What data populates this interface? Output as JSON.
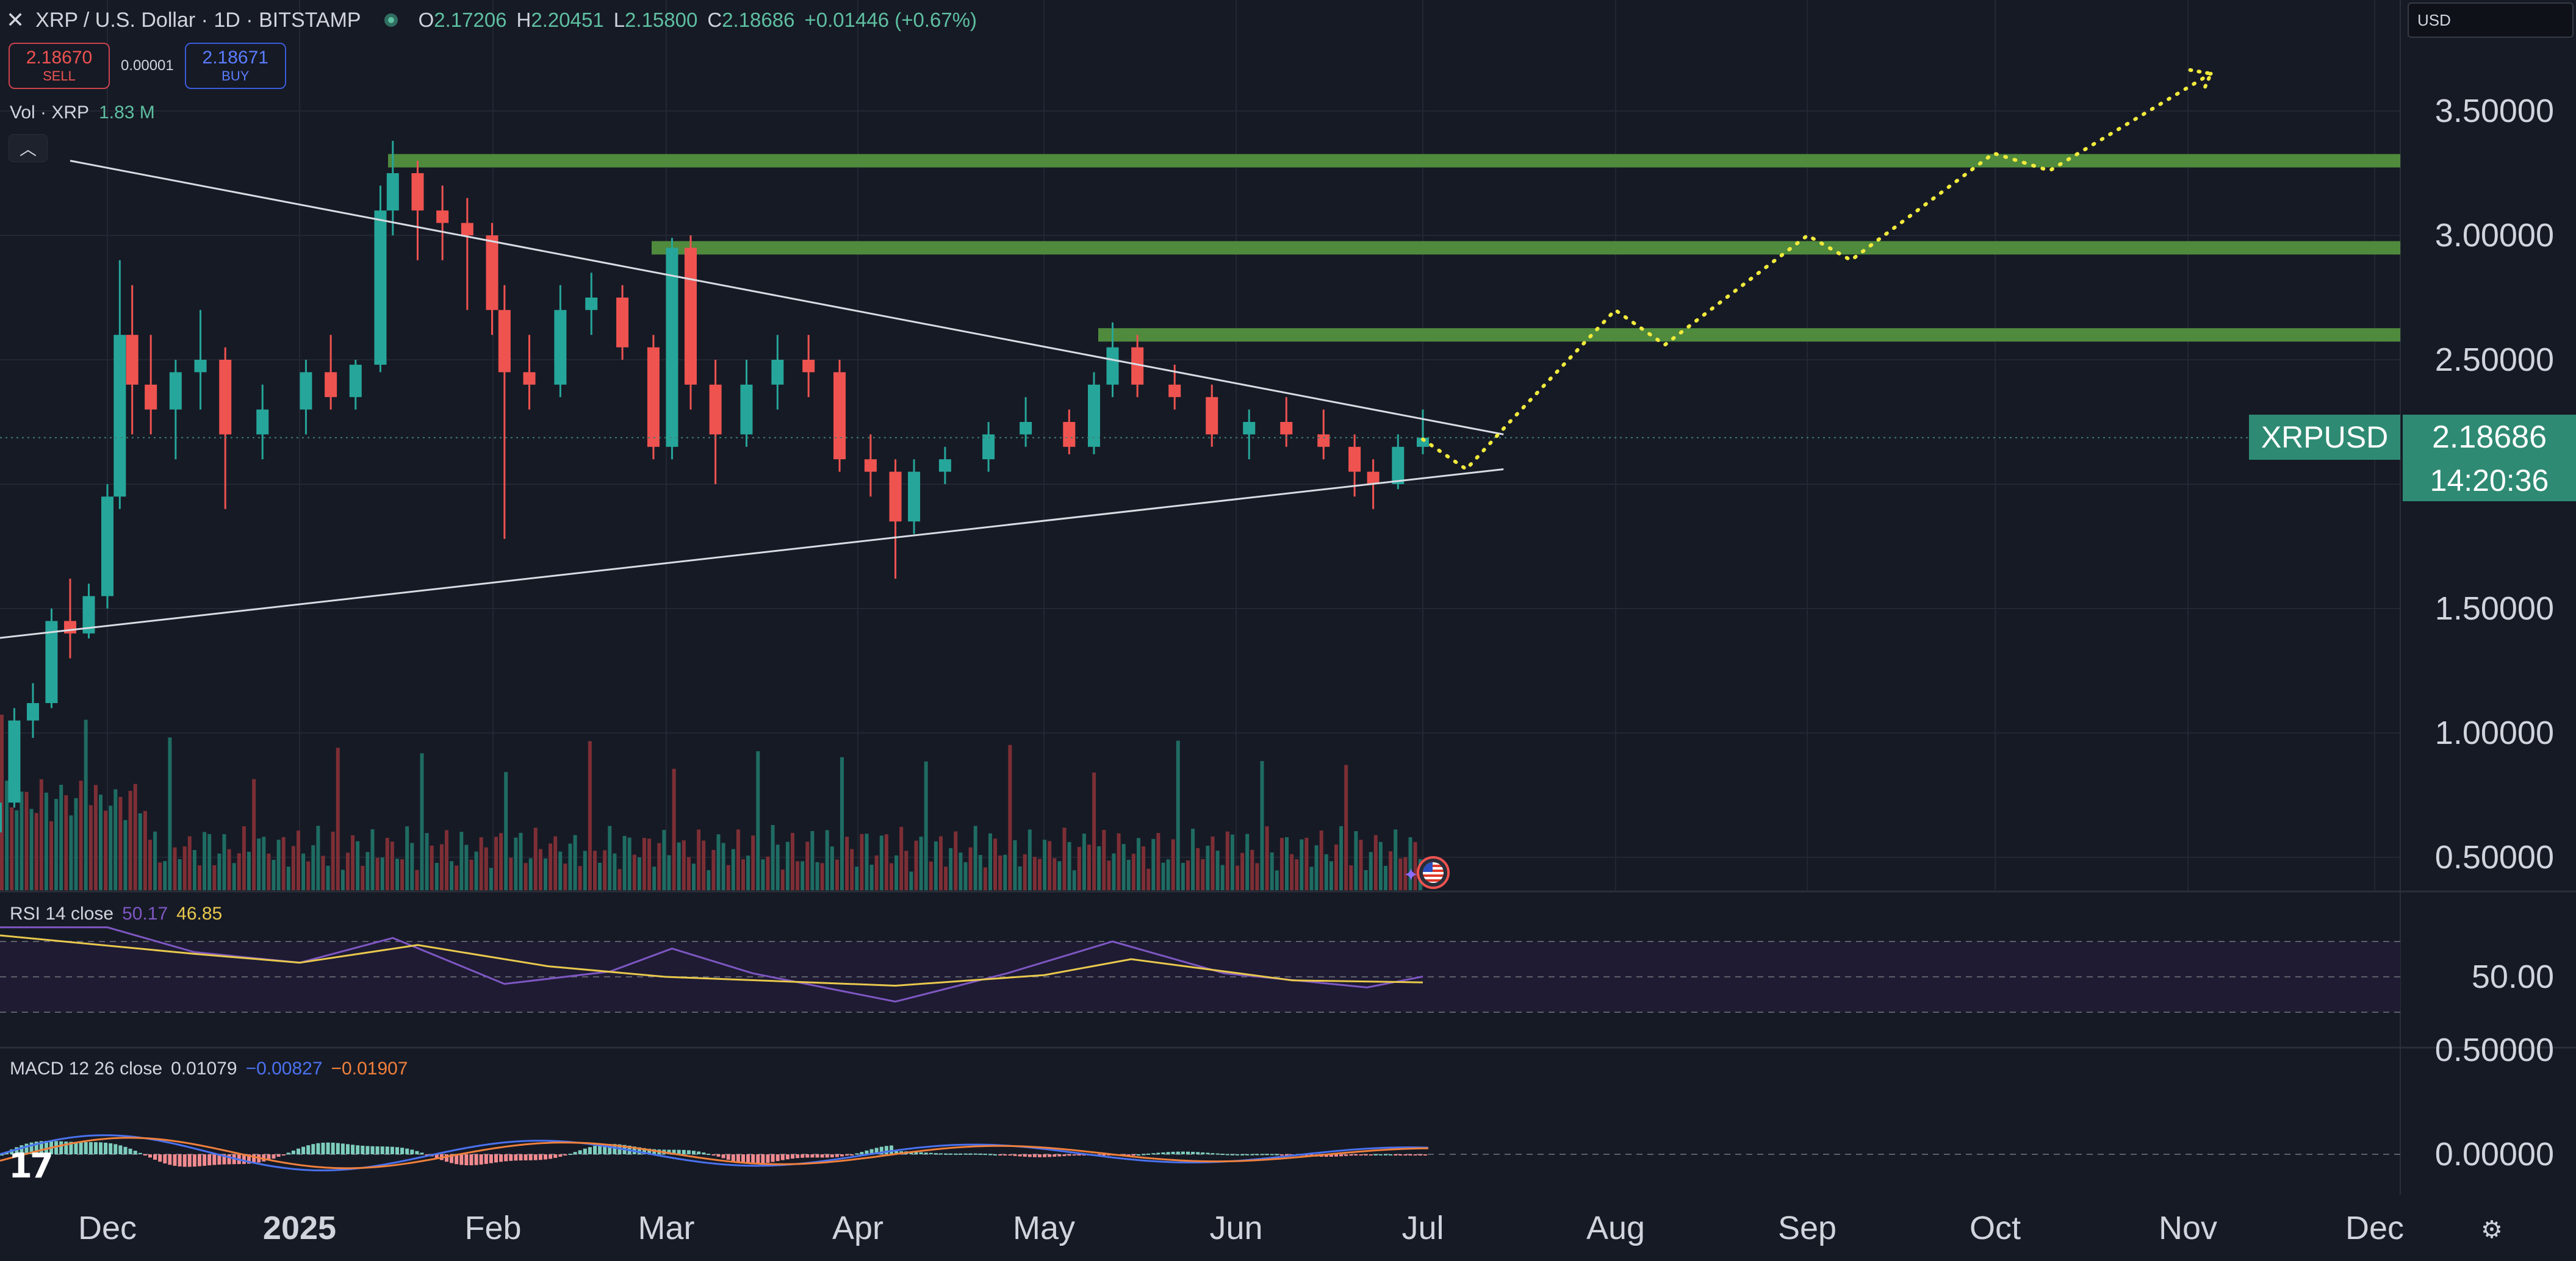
{
  "header": {
    "close_icon": "close-icon",
    "title": "XRP / U.S. Dollar · 1D · BITSTAMP",
    "ohlc": [
      {
        "k": "O",
        "v": "2.17206"
      },
      {
        "k": "H",
        "v": "2.20451"
      },
      {
        "k": "L",
        "v": "2.15800"
      },
      {
        "k": "C",
        "v": "2.18686"
      },
      {
        "k": "",
        "v": "+0.01446 (+0.67%)"
      }
    ]
  },
  "trade": {
    "sell_price": "2.18670",
    "sell_label": "SELL",
    "spread": "0.00001",
    "buy_price": "2.18671",
    "buy_label": "BUY"
  },
  "volume": {
    "label": "Vol · XRP",
    "value": "1.83 M"
  },
  "currency": "USD",
  "rsi": {
    "label": "RSI 14 close",
    "value1": "50.17",
    "value2": "46.85"
  },
  "macd": {
    "label": "MACD 12 26 close",
    "value1": "0.01079",
    "value2": "−0.00827",
    "value3": "−0.01907"
  },
  "last_price": {
    "symbol": "XRPUSD",
    "price": "2.18686",
    "countdown": "14:20:36"
  },
  "colors": {
    "up": "#26a69a",
    "down": "#ef5350",
    "background": "#161a25",
    "zone": "#4f8a3d",
    "projection": "#f0ea3c",
    "trendline": "#d9dce3",
    "rsi": "#7e57c2",
    "rsi_ma": "#e9c94d",
    "macd": "#4a72f0",
    "signal": "#f0803c"
  },
  "icons": {
    "settings": "gear-icon",
    "logo": "tradingview-logo-icon",
    "event": "us-flag-icon"
  },
  "chart_data": {
    "type": "candlestick",
    "x_ticks": [
      "Dec",
      "2025",
      "Feb",
      "Mar",
      "Apr",
      "May",
      "Jun",
      "Jul",
      "Aug",
      "Sep",
      "Oct",
      "Nov",
      "Dec"
    ],
    "y_ticks": [
      "3.50000",
      "3.00000",
      "2.50000",
      "1.50000",
      "1.00000",
      "0.50000"
    ],
    "y_range": [
      0.5,
      3.5
    ],
    "rsi_ticks": [
      "50.00"
    ],
    "macd_ticks": [
      "0.50000",
      "0.00000"
    ],
    "resistance_zones": [
      2.6,
      2.95,
      3.3
    ],
    "trendlines": [
      {
        "name": "upper",
        "from": [
          "2024-11-25",
          3.3
        ],
        "to": [
          "2025-07-14",
          2.2
        ]
      },
      {
        "name": "lower",
        "from": [
          "2024-11-13",
          1.38
        ],
        "to": [
          "2025-07-14",
          2.06
        ]
      }
    ],
    "projection_path": [
      [
        "2025-07-01",
        2.18
      ],
      [
        "2025-07-08",
        2.06
      ],
      [
        "2025-07-15",
        2.25
      ],
      [
        "2025-08-01",
        2.7
      ],
      [
        "2025-08-09",
        2.56
      ],
      [
        "2025-09-01",
        3.0
      ],
      [
        "2025-09-08",
        2.9
      ],
      [
        "2025-10-01",
        3.33
      ],
      [
        "2025-10-10",
        3.26
      ],
      [
        "2025-11-05",
        3.65
      ]
    ],
    "candles": [
      [
        "2024-11-10",
        0.54,
        0.62,
        0.52,
        0.6
      ],
      [
        "2024-11-13",
        0.6,
        0.75,
        0.58,
        0.72
      ],
      [
        "2024-11-16",
        0.72,
        1.1,
        0.7,
        1.05
      ],
      [
        "2024-11-19",
        1.05,
        1.2,
        0.98,
        1.12
      ],
      [
        "2024-11-22",
        1.12,
        1.5,
        1.1,
        1.45
      ],
      [
        "2024-11-25",
        1.45,
        1.62,
        1.3,
        1.4
      ],
      [
        "2024-11-28",
        1.4,
        1.6,
        1.38,
        1.55
      ],
      [
        "2024-12-01",
        1.55,
        2.0,
        1.5,
        1.95
      ],
      [
        "2024-12-03",
        1.95,
        2.9,
        1.9,
        2.6
      ],
      [
        "2024-12-05",
        2.6,
        2.8,
        2.2,
        2.4
      ],
      [
        "2024-12-08",
        2.4,
        2.6,
        2.2,
        2.3
      ],
      [
        "2024-12-12",
        2.3,
        2.5,
        2.1,
        2.45
      ],
      [
        "2024-12-16",
        2.45,
        2.7,
        2.3,
        2.5
      ],
      [
        "2024-12-20",
        2.5,
        2.55,
        1.9,
        2.2
      ],
      [
        "2024-12-26",
        2.2,
        2.4,
        2.1,
        2.3
      ],
      [
        "2025-01-02",
        2.3,
        2.5,
        2.2,
        2.45
      ],
      [
        "2025-01-06",
        2.45,
        2.6,
        2.3,
        2.35
      ],
      [
        "2025-01-10",
        2.35,
        2.5,
        2.3,
        2.48
      ],
      [
        "2025-01-14",
        2.48,
        3.2,
        2.45,
        3.1
      ],
      [
        "2025-01-16",
        3.1,
        3.38,
        3.0,
        3.25
      ],
      [
        "2025-01-20",
        3.25,
        3.3,
        2.9,
        3.1
      ],
      [
        "2025-01-24",
        3.1,
        3.2,
        2.9,
        3.05
      ],
      [
        "2025-01-28",
        3.05,
        3.15,
        2.7,
        3.0
      ],
      [
        "2025-02-01",
        3.0,
        3.05,
        2.6,
        2.7
      ],
      [
        "2025-02-03",
        2.7,
        2.8,
        1.78,
        2.45
      ],
      [
        "2025-02-07",
        2.45,
        2.6,
        2.3,
        2.4
      ],
      [
        "2025-02-12",
        2.4,
        2.8,
        2.35,
        2.7
      ],
      [
        "2025-02-17",
        2.7,
        2.85,
        2.6,
        2.75
      ],
      [
        "2025-02-22",
        2.75,
        2.8,
        2.5,
        2.55
      ],
      [
        "2025-02-27",
        2.55,
        2.6,
        2.1,
        2.15
      ],
      [
        "2025-03-02",
        2.15,
        2.99,
        2.1,
        2.95
      ],
      [
        "2025-03-05",
        2.95,
        3.0,
        2.3,
        2.4
      ],
      [
        "2025-03-09",
        2.4,
        2.5,
        2.0,
        2.2
      ],
      [
        "2025-03-14",
        2.2,
        2.5,
        2.15,
        2.4
      ],
      [
        "2025-03-19",
        2.4,
        2.6,
        2.3,
        2.5
      ],
      [
        "2025-03-24",
        2.5,
        2.6,
        2.35,
        2.45
      ],
      [
        "2025-03-29",
        2.45,
        2.5,
        2.05,
        2.1
      ],
      [
        "2025-04-03",
        2.1,
        2.2,
        1.95,
        2.05
      ],
      [
        "2025-04-07",
        2.05,
        2.1,
        1.62,
        1.85
      ],
      [
        "2025-04-10",
        1.85,
        2.1,
        1.8,
        2.05
      ],
      [
        "2025-04-15",
        2.05,
        2.15,
        2.0,
        2.1
      ],
      [
        "2025-04-22",
        2.1,
        2.25,
        2.05,
        2.2
      ],
      [
        "2025-04-28",
        2.2,
        2.35,
        2.15,
        2.25
      ],
      [
        "2025-05-05",
        2.25,
        2.3,
        2.12,
        2.15
      ],
      [
        "2025-05-09",
        2.15,
        2.45,
        2.12,
        2.4
      ],
      [
        "2025-05-12",
        2.4,
        2.65,
        2.35,
        2.55
      ],
      [
        "2025-05-16",
        2.55,
        2.6,
        2.35,
        2.4
      ],
      [
        "2025-05-22",
        2.4,
        2.48,
        2.3,
        2.35
      ],
      [
        "2025-05-28",
        2.35,
        2.4,
        2.15,
        2.2
      ],
      [
        "2025-06-03",
        2.2,
        2.3,
        2.1,
        2.25
      ],
      [
        "2025-06-09",
        2.25,
        2.35,
        2.15,
        2.2
      ],
      [
        "2025-06-15",
        2.2,
        2.3,
        2.1,
        2.15
      ],
      [
        "2025-06-20",
        2.15,
        2.2,
        1.95,
        2.05
      ],
      [
        "2025-06-23",
        2.05,
        2.1,
        1.9,
        2.0
      ],
      [
        "2025-06-27",
        2.0,
        2.2,
        1.98,
        2.15
      ],
      [
        "2025-07-01",
        2.15,
        2.3,
        2.12,
        2.18686
      ]
    ],
    "rsi_series": [
      [
        "2024-11-12",
        78
      ],
      [
        "2024-12-01",
        78
      ],
      [
        "2024-12-15",
        64
      ],
      [
        "2025-01-01",
        58
      ],
      [
        "2025-01-16",
        72
      ],
      [
        "2025-02-03",
        46
      ],
      [
        "2025-02-20",
        53
      ],
      [
        "2025-03-02",
        66
      ],
      [
        "2025-03-15",
        52
      ],
      [
        "2025-04-07",
        36
      ],
      [
        "2025-04-25",
        52
      ],
      [
        "2025-05-12",
        70
      ],
      [
        "2025-05-30",
        52
      ],
      [
        "2025-06-22",
        44
      ],
      [
        "2025-07-01",
        50.17
      ]
    ],
    "rsi_ma_series": [
      [
        "2024-11-12",
        74
      ],
      [
        "2024-12-15",
        63
      ],
      [
        "2025-01-01",
        58
      ],
      [
        "2025-01-20",
        68
      ],
      [
        "2025-02-10",
        56
      ],
      [
        "2025-03-01",
        50
      ],
      [
        "2025-04-07",
        45
      ],
      [
        "2025-05-01",
        51
      ],
      [
        "2025-05-15",
        60
      ],
      [
        "2025-06-10",
        48
      ],
      [
        "2025-07-01",
        46.85
      ]
    ]
  }
}
